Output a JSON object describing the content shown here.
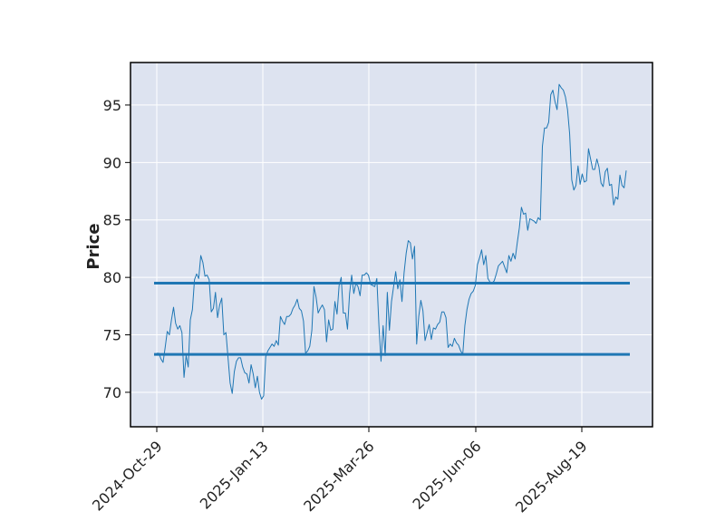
{
  "chart_data": {
    "type": "line",
    "title": "",
    "xlabel": "",
    "ylabel": "Price",
    "ylim": [
      67,
      98.7
    ],
    "yticks": [
      70,
      75,
      80,
      85,
      90,
      95
    ],
    "xtick_labels": [
      "2024-Oct-29",
      "2025-Jan-13",
      "2025-Mar-26",
      "2025-Jun-06",
      "2025-Aug-19"
    ],
    "grid": true,
    "legend": "none",
    "colors": {
      "line": "#1f77b4",
      "hlines": "#1f77b4",
      "plot_bg": "#dde3f0",
      "grid": "#ffffff",
      "frame": "#000000"
    },
    "horizontal_lines": [
      79.5,
      73.3
    ],
    "series": [
      {
        "values": [
          73.4,
          73.4,
          72.9,
          72.6,
          73.9,
          75.3,
          75.0,
          76.3,
          77.4,
          76.0,
          75.5,
          75.8,
          75.2,
          71.3,
          73.2,
          72.2,
          76.3,
          77.2,
          79.8,
          80.3,
          79.9,
          81.9,
          81.3,
          80.1,
          80.2,
          79.8,
          77.0,
          77.3,
          78.7,
          76.5,
          77.6,
          78.2,
          75.0,
          75.2,
          73.0,
          70.8,
          69.9,
          71.8,
          72.7,
          73.0,
          73.0,
          72.2,
          71.7,
          71.6,
          70.8,
          72.4,
          71.6,
          70.4,
          71.4,
          70.0,
          69.4,
          69.7,
          73.1,
          73.6,
          73.9,
          74.2,
          74.0,
          74.5,
          74.1,
          76.6,
          76.2,
          75.9,
          76.6,
          76.6,
          76.8,
          77.3,
          77.6,
          78.1,
          77.3,
          77.1,
          76.2,
          73.4,
          73.6,
          74.0,
          75.4,
          79.2,
          78.3,
          76.9,
          77.3,
          77.6,
          77.2,
          74.4,
          76.3,
          75.4,
          75.5,
          77.9,
          76.8,
          79.3,
          80.0,
          76.9,
          76.9,
          75.5,
          78.6,
          80.2,
          78.6,
          79.5,
          79.2,
          78.4,
          80.2,
          80.2,
          80.4,
          80.2,
          79.4,
          79.3,
          79.2,
          79.9,
          75.8,
          72.7,
          75.8,
          73.2,
          78.7,
          75.4,
          77.9,
          79.2,
          80.5,
          79.0,
          79.8,
          77.9,
          80.4,
          82.1,
          83.2,
          83.0,
          81.6,
          82.7,
          74.2,
          76.6,
          78.0,
          77.1,
          74.5,
          75.2,
          75.9,
          74.6,
          75.6,
          75.5,
          75.9,
          76.1,
          77.0,
          77.0,
          76.5,
          73.9,
          74.2,
          74.0,
          74.7,
          74.3,
          74.1,
          73.6,
          73.3,
          75.8,
          77.2,
          78.1,
          78.6,
          78.8,
          79.3,
          81.1,
          81.7,
          82.4,
          81.1,
          81.9,
          79.9,
          79.6,
          79.5,
          79.7,
          80.3,
          81.0,
          81.2,
          81.4,
          80.9,
          80.4,
          81.9,
          81.4,
          82.1,
          81.6,
          83.0,
          84.3,
          86.1,
          85.5,
          85.6,
          84.1,
          85.1,
          85.0,
          84.9,
          84.7,
          85.2,
          85.0,
          91.4,
          93.0,
          93.0,
          93.5,
          95.9,
          96.3,
          95.3,
          94.6,
          96.8,
          96.5,
          96.3,
          95.7,
          94.6,
          92.5,
          88.5,
          87.6,
          88.0,
          89.7,
          88.1,
          89.0,
          88.3,
          88.4,
          91.2,
          90.3,
          89.4,
          89.4,
          90.3,
          89.6,
          88.2,
          87.9,
          89.2,
          89.5,
          88.0,
          88.1,
          86.3,
          87.0,
          86.8,
          88.9,
          88.0,
          87.8,
          89.3
        ]
      }
    ]
  }
}
